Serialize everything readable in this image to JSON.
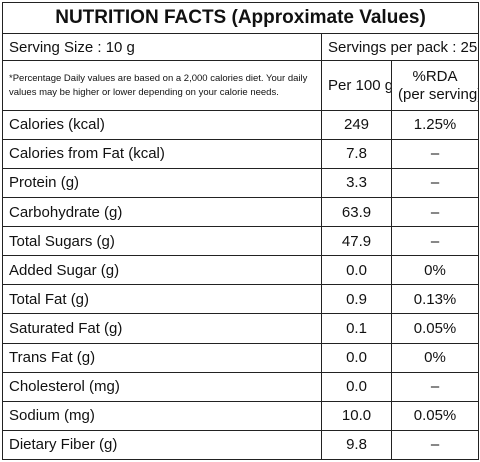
{
  "title": "NUTRITION FACTS (Approximate Values)",
  "serving_size": "Serving Size : 10 g",
  "servings_per_pack": "Servings per pack : 25",
  "note": "*Percentage Daily values are based on a 2,000 calories diet. Your daily values may be higher or lower depending on your calorie needs.",
  "col_per100": "Per 100 g",
  "col_rda_line1": "%RDA",
  "col_rda_line2": "(per serving)",
  "rows": [
    {
      "name": "Calories (kcal)",
      "per100": "249",
      "rda": "1.25%"
    },
    {
      "name": "Calories from Fat (kcal)",
      "per100": "7.8",
      "rda": "–"
    },
    {
      "name": "Protein (g)",
      "per100": "3.3",
      "rda": "–"
    },
    {
      "name": "Carbohydrate (g)",
      "per100": "63.9",
      "rda": "–"
    },
    {
      "name": "Total Sugars (g)",
      "per100": "47.9",
      "rda": "–"
    },
    {
      "name": "Added Sugar (g)",
      "per100": "0.0",
      "rda": "0%"
    },
    {
      "name": "Total Fat (g)",
      "per100": "0.9",
      "rda": "0.13%"
    },
    {
      "name": "Saturated Fat (g)",
      "per100": "0.1",
      "rda": "0.05%"
    },
    {
      "name": "Trans Fat (g)",
      "per100": "0.0",
      "rda": "0%"
    },
    {
      "name": "Cholesterol (mg)",
      "per100": "0.0",
      "rda": "–"
    },
    {
      "name": "Sodium (mg)",
      "per100": "10.0",
      "rda": "0.05%"
    },
    {
      "name": "Dietary Fiber (g)",
      "per100": "9.8",
      "rda": "–"
    }
  ]
}
